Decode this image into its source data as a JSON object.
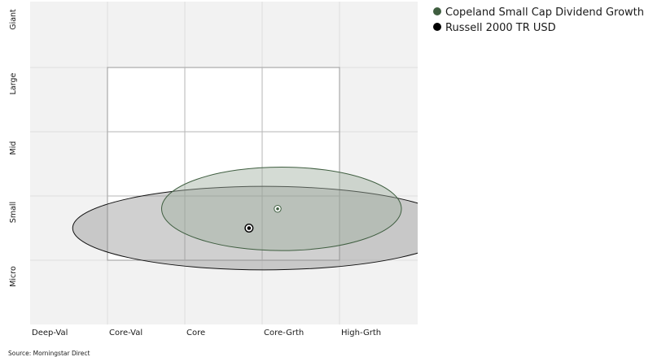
{
  "chart_data": {
    "type": "scatter",
    "subtype": "holdings-based style map",
    "x_categories": [
      "Deep-Val",
      "Core-Val",
      "Core",
      "Core-Grth",
      "High-Grth"
    ],
    "y_categories": [
      "Micro",
      "Small",
      "Mid",
      "Large",
      "Giant"
    ],
    "xlim": [
      0,
      5
    ],
    "ylim": [
      0,
      5
    ],
    "style_box": {
      "x_range": [
        1,
        4
      ],
      "y_range": [
        1,
        4
      ]
    },
    "series": [
      {
        "name": "Copeland Small Cap Dividend Growth",
        "color": "#3f5e40",
        "centroid": {
          "x": 3.2,
          "y": 1.8
        },
        "zone": {
          "x_min": 1.7,
          "x_max": 4.8,
          "y_min": 1.15,
          "y_max": 2.45
        }
      },
      {
        "name": "Russell 2000 TR USD",
        "color": "#000000",
        "centroid": {
          "x": 2.83,
          "y": 1.5
        },
        "zone": {
          "x_min": 0.55,
          "x_max": 5.5,
          "y_min": 0.85,
          "y_max": 2.15
        }
      }
    ],
    "legend_placement": "top-right",
    "grid": true
  },
  "source": "Source: Morningstar Direct"
}
